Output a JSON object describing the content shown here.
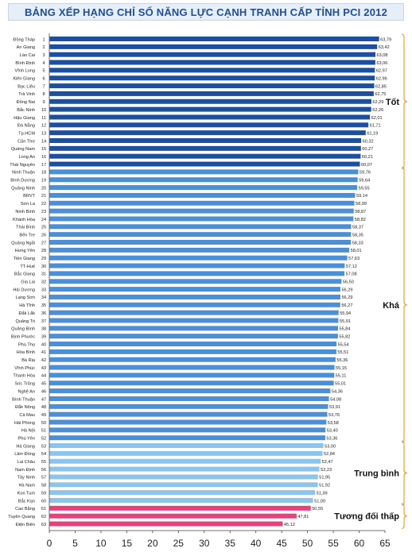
{
  "chart_data": {
    "type": "bar",
    "orientation": "horizontal",
    "title": "BẢNG XẾP HẠNG CHỈ SỐ NĂNG LỰC CẠNH TRANH CẤP TỈNH  PCI 2012",
    "xlim": [
      0,
      65
    ],
    "xticks": [
      0,
      5,
      10,
      15,
      20,
      25,
      30,
      35,
      40,
      45,
      50,
      55,
      60,
      65
    ],
    "grid": false,
    "categories": [
      "Đồng Tháp",
      "An Giang",
      "Lào Cai",
      "Bình Định",
      "Vĩnh Long",
      "Kiên Giang",
      "Bạc Liêu",
      "Trà Vinh",
      "Đồng Nai",
      "Bắc Ninh",
      "Hậu Giang",
      "Đà Nẵng",
      "Tp.HCM",
      "Cần Thơ",
      "Quảng Nam",
      "Long An",
      "Thái Nguyên",
      "Ninh Thuận",
      "Bình Dương",
      "Quảng Ninh",
      "BRVT",
      "Sơn La",
      "Ninh Bình",
      "Khánh Hòa",
      "Thái Bình",
      "Bến Tre",
      "Quảng Ngãi",
      "Hưng Yên",
      "Tiền Giang",
      "TT-Huế",
      "Bắc Giang",
      "Gia Lai",
      "Hải Dương",
      "Lạng Sơn",
      "Hà Tĩnh",
      "Đắk Lắk",
      "Quảng Trị",
      "Quảng Bình",
      "Bình Phước",
      "Phú Thọ",
      "Hòa Bình",
      "Bà Rịa",
      "Vĩnh Phúc",
      "Thanh Hóa",
      "Sóc Trăng",
      "Nghệ An",
      "Bình Thuận",
      "Đắk Nông",
      "Cà Mau",
      "Hải Phòng",
      "Hà Nội",
      "Phú Yên",
      "Hà Giang",
      "Lâm Đồng",
      "Lai Châu",
      "Nam Định",
      "Tây Ninh",
      "Hà Nam",
      "Kon Tum",
      "Bắc Kạn",
      "Cao Bằng",
      "Tuyên Quang",
      "Điện Biên"
    ],
    "ranks": [
      1,
      2,
      3,
      4,
      5,
      6,
      7,
      8,
      9,
      10,
      11,
      12,
      13,
      14,
      15,
      16,
      17,
      18,
      19,
      20,
      21,
      22,
      23,
      24,
      25,
      26,
      27,
      28,
      29,
      30,
      31,
      32,
      33,
      34,
      35,
      36,
      37,
      38,
      39,
      40,
      41,
      42,
      43,
      44,
      45,
      46,
      47,
      48,
      49,
      50,
      51,
      52,
      53,
      54,
      55,
      56,
      57,
      58,
      59,
      60,
      61,
      62,
      63
    ],
    "values": [
      63.79,
      63.42,
      63.08,
      63.06,
      62.97,
      62.96,
      62.85,
      62.75,
      62.29,
      62.26,
      62.01,
      61.71,
      61.19,
      60.32,
      60.27,
      60.21,
      60.07,
      59.76,
      59.64,
      59.55,
      59.14,
      58.99,
      58.87,
      58.82,
      58.37,
      58.35,
      58.33,
      58.01,
      57.63,
      57.12,
      57.08,
      56.5,
      56.29,
      56.29,
      56.27,
      55.94,
      55.91,
      55.84,
      55.82,
      55.54,
      55.51,
      55.36,
      55.15,
      55.11,
      55.01,
      54.36,
      54.08,
      53.91,
      53.76,
      53.58,
      53.4,
      53.36,
      53.0,
      52.84,
      52.47,
      52.23,
      51.95,
      51.92,
      51.39,
      51.0,
      50.55,
      47.81,
      45.12
    ],
    "value_labels": [
      "63,79",
      "63,42",
      "63,08",
      "63,06",
      "62,97",
      "62,96",
      "62,85",
      "62,75",
      "62,29",
      "62,26",
      "62,01",
      "61,71",
      "61,19",
      "60,32",
      "60,27",
      "60,21",
      "60,07",
      "59,76",
      "59,64",
      "59,55",
      "59,14",
      "58,99",
      "58,87",
      "58,82",
      "58,37",
      "58,35",
      "58,33",
      "58,01",
      "57,63",
      "57,12",
      "57,08",
      "56,50",
      "56,29",
      "56,29",
      "56,27",
      "55,94",
      "55,91",
      "55,84",
      "55,82",
      "55,54",
      "55,51",
      "55,36",
      "55,15",
      "55,11",
      "55,01",
      "54,36",
      "54,08",
      "53,91",
      "53,76",
      "53,58",
      "53,40",
      "53,36",
      "53,00",
      "52,84",
      "52,47",
      "52,23",
      "51,95",
      "51,92",
      "51,39",
      "51,00",
      "50,55",
      "47,81",
      "45,12"
    ],
    "groups": [
      {
        "label": "Tốt",
        "from_rank": 1,
        "to_rank": 17,
        "color": "#1d4fa0"
      },
      {
        "label": "Khá",
        "from_rank": 18,
        "to_rank": 52,
        "color": "#4d8fd6"
      },
      {
        "label": "Trung bình",
        "from_rank": 53,
        "to_rank": 60,
        "color": "#8cc4ee"
      },
      {
        "label": "Tương đối thấp",
        "from_rank": 61,
        "to_rank": 63,
        "color": "#e8407a"
      }
    ],
    "bracket_color": "#f0a030"
  }
}
